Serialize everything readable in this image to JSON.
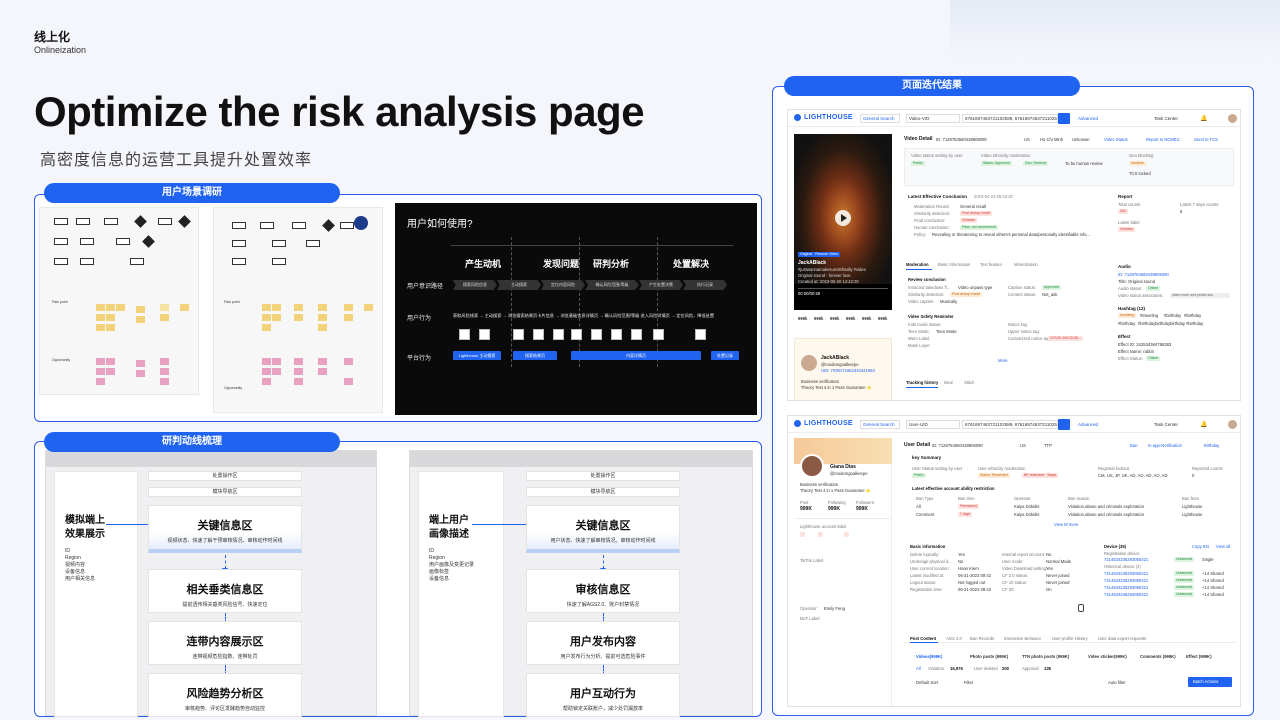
{
  "header": {
    "brand_zh": "线上化",
    "brand_en": "Onlineization",
    "title": "Optimize the risk analysis page",
    "subtitle": "高密度信息的运营工具提升处置效率"
  },
  "colors": {
    "accent": "#1f63f0",
    "panel_border": "#2c5bea"
  },
  "section1": {
    "label": "用户场景调研",
    "slide": {
      "title": "用户如何使用?",
      "cols": [
        "产生动机",
        "发现问题",
        "研判分析",
        "处置解决"
      ],
      "rows": [
        "用户意识路径",
        "用户行为",
        "平台行为"
      ],
      "path_steps": [
        "搜索风险信息",
        "主动搜索",
        "定位内容风险",
        "确认风险范围/等级",
        "产生处置决策",
        "执行记录"
      ],
      "behavior_line": "获取风险线索 → 主动搜索 → 浏览搜索结果页卡片信息 → 浏览基础信息详情页 → 确认风险范围/等级 进入风险详情页 → 定位风险，降低处置",
      "platform": [
        "Lighthouse 主动搜索",
        "搜索结果页",
        "内容详情页",
        "处置记录"
      ],
      "boxes": [
        "风险信息",
        "搜索工具",
        "卡片/浏览",
        "大卡模式",
        "查看详情",
        "内容基础信息",
        "历史处置",
        "操作审核",
        "查看记录",
        "批量处置",
        "风险入口"
      ]
    },
    "thumb_labels": [
      "Pain point",
      "Opportunity"
    ]
  },
  "section2": {
    "label": "研判动线梳理",
    "left": {
      "top_bars": [
        "处置操作区",
        "模块导航区"
      ],
      "side_title": [
        "模拟端上",
        "效果展示"
      ],
      "side_list": [
        "ID",
        "Region",
        "视频内容",
        "设备信息",
        "用户相关信息"
      ],
      "cards": [
        {
          "title": "关键信息区",
          "sub": "视频状态、快速了解干预审核情况、审核动作时间线"
        },
        {
          "title": "相关垂类信息区",
          "sub": "提前透传相关垂类风险信号、快速定位"
        },
        {
          "title": "连带内容展示区",
          "sub": "连带视频危险指数、连带处罚"
        },
        {
          "title": "风险趋势分析区",
          "sub": "审核趋势、评论区发酵趋势自动监控"
        }
      ]
    },
    "right": {
      "top_bars": [
        "处置操作区",
        "模块导航区"
      ],
      "side_title": [
        "端上用户",
        "画像描述"
      ],
      "side_list": [
        "ID",
        "Region",
        "用户画像及变更记录",
        "画像标签",
        "设备信息"
      ],
      "cards": [
        {
          "title": "关键信息区",
          "sub": "用户状态、快速了解审核情况、审核动作时间线"
        },
        {
          "title": "审核信息区",
          "sub": "快速了解AGS2.0、账户封禁情况"
        },
        {
          "title": "用户发布内容",
          "sub": "用户发布行为分析、提前可选危险事件"
        },
        {
          "title": "用户互动行为",
          "sub": "帮助锁定关联账户，减少处罚漏放率"
        }
      ]
    }
  },
  "section3": {
    "label": "页面迭代结果",
    "shot1": {
      "logo": "LIGHTHOUSE",
      "search_type": "General Search",
      "search_field": "Video-VID",
      "search_value": "6761697463721102589, 6761697463721102589",
      "advanced": "Advanced",
      "task_center": "Task Center",
      "detail_title": "Video Detail",
      "detail_id": "ID: 7128754560438905090",
      "region": "US",
      "city": "Ho Chi Minh",
      "unknown": "Unknown",
      "actions": [
        "Video Status",
        "Report to NCMEC",
        "Send to TCS"
      ],
      "status_labels": [
        "Video status setting by user",
        "Video ethnicity moderation",
        "Geo blocking"
      ],
      "tags": [
        "Public",
        "Status: Approved",
        "Geo: General",
        "Invisible"
      ],
      "human_review": "To be human review",
      "tcs_locked": "TCS locked",
      "conclusion_title": "Latest Effective Conclusion",
      "conclusion_time": "2023-04-23 09:42:20",
      "conclusion_rows": [
        {
          "k": "Moderation Round:",
          "v": "General recall"
        },
        {
          "k": "Similarity detection:",
          "v": "Post dedup model"
        },
        {
          "k": "Final conclusion:",
          "v": "Violation"
        },
        {
          "k": "Human conclusion:",
          "v": "Pass, not recommend"
        },
        {
          "k": "Policy:",
          "v": "Revealing or threatening to reveal others's personal data/personally identifiable info..."
        }
      ],
      "report": {
        "title": "Report",
        "total_label": "Total counts",
        "total": "300",
        "last_label": "Latest 7 days counts",
        "last": "8",
        "label": "Latest label",
        "violation": "Violation"
      },
      "phone": {
        "label": "Original · Remove Video",
        "name": "JackABlack",
        "desc": "#justwannamakesureitsfinally #video",
        "music": "Original sound - forever love",
        "created": "Created at: 2023-05-20 14:42:20",
        "time": "00:00/00:59",
        "stats": [
          "999k",
          "999k",
          "999k",
          "999k",
          "999k",
          "999k"
        ]
      },
      "tabs": [
        "Moderation",
        "Basic Information",
        "Text feature",
        "Monetization"
      ],
      "review": {
        "title": "Review conclusion",
        "rows": [
          {
            "k": "Intracted takedown fl...",
            "v": "Video unpass type"
          },
          {
            "k": "Similarity detection:",
            "v": "Post dedup model"
          },
          {
            "k": "Video caption:",
            "v": "Musically"
          }
        ],
        "right": [
          {
            "k": "Caption status:",
            "v": "Approved"
          },
          {
            "k": "Content status:",
            "v": "Not_ask"
          }
        ]
      },
      "safety": {
        "title": "Video Safety Reminder",
        "rows": [
          "Kids mode status:",
          "Teen Mode:",
          "Warn Label:",
          "Mask Layer:"
        ],
        "teen_value": "Teen Mode",
        "right": [
          "Notice tag:",
          "Upper notice tag:",
          "Customized notice tag:"
        ],
        "covid": "COVID-19/COVID..."
      },
      "more": "More",
      "tracking": [
        "Tracking history",
        "Deal",
        "Stitch"
      ],
      "audio": {
        "title": "Audio",
        "id": "ID: 7128754560438905090",
        "title_line": "Title: Original sound",
        "status": "Audio status:",
        "online": "Online",
        "assoc": "Video status associates:",
        "assoc_v": "video mute and profile ass"
      },
      "hashtag": {
        "title": "Hashtag (12)",
        "tags": [
          "#cooking",
          "#traveling",
          "#birthday",
          "#birthday",
          "#birthday",
          "#birthdaybirthdaybirthday",
          "#birthday"
        ]
      },
      "effect": {
        "title": "Effect",
        "id": "Effect ID: 342534364786383",
        "name": "Effect Name: rabbit",
        "status": "Effect Status:",
        "online": "Online"
      },
      "creator": {
        "name": "JackABlack",
        "handle": "@modemgoalkeepe",
        "uid": "UID: 7039171662310441963",
        "verify": "Business verification",
        "bio": "Theory Test 4 in 1 Pass Guarantee ⭐"
      }
    },
    "shot2": {
      "logo": "LIGHTHOUSE",
      "search_type": "General Search",
      "search_field": "User-UID",
      "search_value": "6761697463721102589, 6761697463721102589",
      "advanced": "Advanced",
      "task_center": "Task Center",
      "detail_title": "User Detail",
      "detail_id": "ID: 7128754560438905090",
      "region": "US",
      "ttp": "TTP",
      "actions": [
        "Ban",
        "In-app-Notification",
        "Birthday"
      ],
      "summary": "key Summary",
      "status_labels": [
        "User Status setting by user",
        "User ethnicity moderation",
        "Regional lockout",
        "Reported counts"
      ],
      "tags": [
        "Public",
        "Status: Restricted",
        "BP restricted · 3days"
      ],
      "regions": "CM, US, JP, UK, AD, AO, AD, AO, AD",
      "reported": "0",
      "restriction_title": "Latest effective account ability restriction",
      "restriction_cols": [
        "Ban Type",
        "Ban time",
        "Operator",
        "Ban reason",
        "Ban from"
      ],
      "restriction_rows": [
        {
          "type": "All",
          "time": "Permanent",
          "op": "Kalya Dokidis",
          "reason": "Violation,abuse and criminals exploration",
          "from": "Lighthouse"
        },
        {
          "type": "Comment",
          "time": "7 days",
          "op": "Kalya Dokidis",
          "reason": "Violation,abuse and criminals exploration",
          "from": "Lighthouse"
        }
      ],
      "view_more": "View M more",
      "user": {
        "name": "Giana Dias",
        "handle": "@modemgoalkeepe",
        "verify": "Business verification",
        "bio": "Theory Test 4 in 1 Pass Guarantee ⭐",
        "post_label": "Post",
        "post": "999K",
        "following_label": "Following",
        "following": "999K",
        "followers_label": "Followers",
        "followers": "999K",
        "account_label": "Lighthouse account label",
        "tiktok_label": "TikTok Label",
        "operator": "Operator:",
        "operator_v": "Emily Feng",
        "mcf": "McF Label"
      },
      "basic_info": "Basic information",
      "basic_rows": [
        {
          "k": "Delete logically:",
          "v": "Yes"
        },
        {
          "k": "Underage physical d...",
          "v": "No"
        },
        {
          "k": "User current location:",
          "v": "Hoan Kiem"
        },
        {
          "k": "Latest modified at:",
          "v": "06-31-2023 09:42"
        },
        {
          "k": "Logout status:",
          "v": "Not logged out"
        },
        {
          "k": "Registration time:",
          "v": "06-31-2023 09:42"
        }
      ],
      "basic_right": [
        {
          "k": "Internal report account:",
          "v": "No"
        },
        {
          "k": "User mode:",
          "v": "Normal Mode"
        },
        {
          "k": "Video Download setting:",
          "v": "Yes"
        },
        {
          "k": "CF 2.0 status:",
          "v": "Never joined"
        },
        {
          "k": "CF 10 status:",
          "v": "Never joined"
        },
        {
          "k": "CF 20:",
          "v": "On"
        }
      ],
      "device_title": "Device (35)",
      "device_links": [
        "Copy IDs",
        "View all"
      ],
      "device_rows": [
        "7214534236293050321",
        "7214534236293050321",
        "7214534236293050321",
        "7214534236293050321",
        "7214534236293050321"
      ],
      "unbanned": "Unbanned",
      "single": "Single",
      "shared": "+14 Shared",
      "reg_device": "Registration device",
      "hist_device": "Historical device (4)",
      "post_tabs": [
        "Post Content",
        "AGS 2.0",
        "Ban Records",
        "Interactive Behavior",
        "User profile History",
        "User data export requests"
      ],
      "content_tabs": [
        "Videos(999K)",
        "Photo posts (999K)",
        "TTN photo posts (999K)",
        "Video sticker(999K)",
        "Comments (999K)",
        "Effect (999K)"
      ],
      "counts": [
        {
          "k": "All",
          "v": ""
        },
        {
          "k": "Violation",
          "v": "16,976"
        },
        {
          "k": "User deleted",
          "v": "200"
        },
        {
          "k": "Approval",
          "v": "135"
        }
      ],
      "sort": "Default Sort",
      "filter": "Filter",
      "auto_filter": "Auto filter",
      "batch": "Batch Actions"
    }
  }
}
